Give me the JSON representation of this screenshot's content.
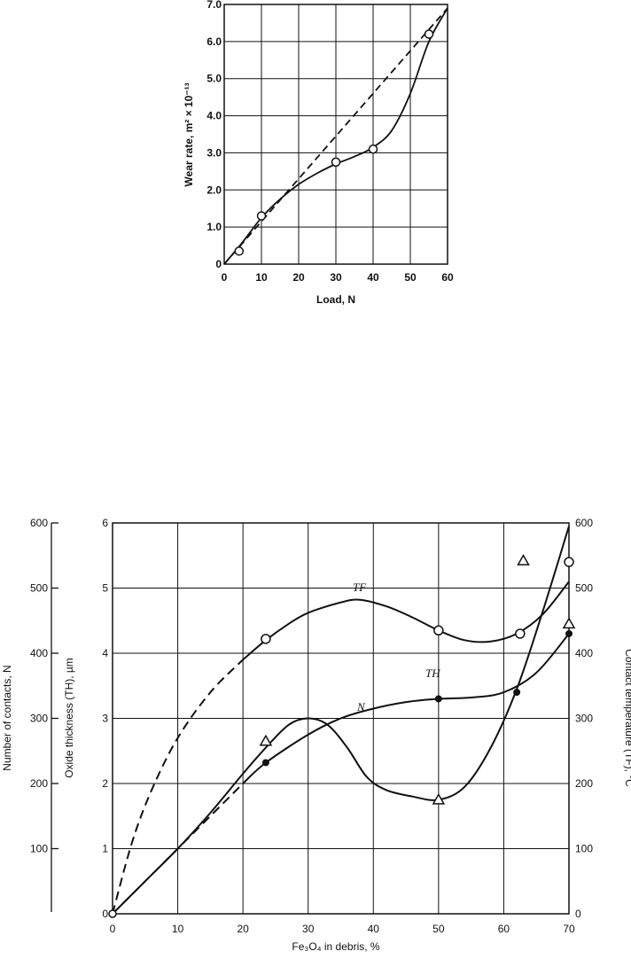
{
  "chart_data": [
    {
      "type": "line",
      "xlabel": "Load, N",
      "ylabel": "Wear rate, m² × 10⁻¹³",
      "xlim": [
        0,
        60
      ],
      "ylim": [
        0,
        7
      ],
      "xticks": [
        "0",
        "10",
        "20",
        "30",
        "40",
        "50",
        "60"
      ],
      "yticks": [
        "0",
        "1.0",
        "2.0",
        "3.0",
        "4.0",
        "5.0",
        "6.0",
        "7.0"
      ],
      "grid": true,
      "series": [
        {
          "style": "solid",
          "x": [
            0,
            5,
            10,
            15,
            20,
            25,
            30,
            35,
            40,
            45,
            50,
            55,
            60
          ],
          "y": [
            0,
            0.6,
            1.25,
            1.75,
            2.15,
            2.45,
            2.7,
            2.9,
            3.15,
            3.6,
            4.6,
            6.0,
            6.9
          ]
        },
        {
          "style": "dashed",
          "x": [
            0,
            60
          ],
          "y": [
            0,
            6.9
          ]
        },
        {
          "style": "open-circle",
          "x": [
            4,
            10,
            30,
            40,
            55
          ],
          "y": [
            0.35,
            1.3,
            2.75,
            3.1,
            6.2
          ]
        }
      ]
    },
    {
      "type": "line",
      "xlabel": "Fe₃O₄ in debris, %",
      "ylabel_left_outer": "Number of contacts, N",
      "ylabel_left_inner": "Oxide thickness (TH), µm",
      "ylabel_right": "Contact temperature (TF), °C",
      "xlim": [
        0,
        70
      ],
      "ylim_N": [
        0,
        600
      ],
      "ylim_TH": [
        0,
        6
      ],
      "ylim_TF": [
        0,
        600
      ],
      "xticks": [
        "0",
        "10",
        "20",
        "30",
        "40",
        "50",
        "60",
        "70"
      ],
      "yticks_N": [
        "100",
        "200",
        "300",
        "400",
        "500",
        "600"
      ],
      "yticks_TH": [
        "0",
        "1",
        "2",
        "3",
        "4",
        "5",
        "6"
      ],
      "yticks_TF": [
        "0",
        "100",
        "200",
        "300",
        "400",
        "500",
        "600"
      ],
      "grid": true,
      "curve_labels": [
        "TF",
        "TH",
        "N"
      ],
      "series": [
        {
          "name": "TF",
          "x": [
            0,
            3,
            6,
            10,
            15,
            20,
            23.5,
            27,
            30,
            35,
            38,
            42,
            46,
            50,
            54,
            58,
            62,
            66,
            70
          ],
          "y": [
            0,
            110,
            190,
            270,
            340,
            390,
            420,
            445,
            462,
            478,
            482,
            472,
            455,
            435,
            420,
            418,
            430,
            460,
            510
          ],
          "dashed_until": 20
        },
        {
          "name": "TF-points",
          "style": "open-circle",
          "x": [
            23.5,
            50,
            62.5,
            70
          ],
          "y": [
            422,
            435,
            430,
            540
          ]
        },
        {
          "name": "TH",
          "x": [
            0,
            10,
            20,
            23.5,
            30,
            35,
            40,
            45,
            50,
            55,
            60,
            65,
            70
          ],
          "y": [
            0,
            1.0,
            2.0,
            2.32,
            2.75,
            3.0,
            3.15,
            3.25,
            3.3,
            3.32,
            3.4,
            3.7,
            4.3
          ],
          "dashed_until": 20
        },
        {
          "name": "TH-points",
          "style": "filled-circle",
          "x": [
            23.5,
            50,
            62,
            70
          ],
          "y": [
            2.32,
            3.3,
            3.4,
            4.3
          ]
        },
        {
          "name": "N",
          "x": [
            0,
            5,
            10,
            15,
            20,
            23.5,
            27,
            30,
            33,
            36,
            39,
            42,
            46,
            50,
            54,
            58,
            62,
            66,
            70
          ],
          "y": [
            0,
            50,
            100,
            155,
            215,
            255,
            290,
            300,
            290,
            255,
            210,
            190,
            180,
            175,
            195,
            255,
            345,
            465,
            595
          ]
        },
        {
          "name": "N-points",
          "style": "open-triangle",
          "x": [
            23.5,
            50,
            63,
            70
          ],
          "y": [
            265,
            175,
            542,
            445
          ]
        }
      ]
    }
  ]
}
